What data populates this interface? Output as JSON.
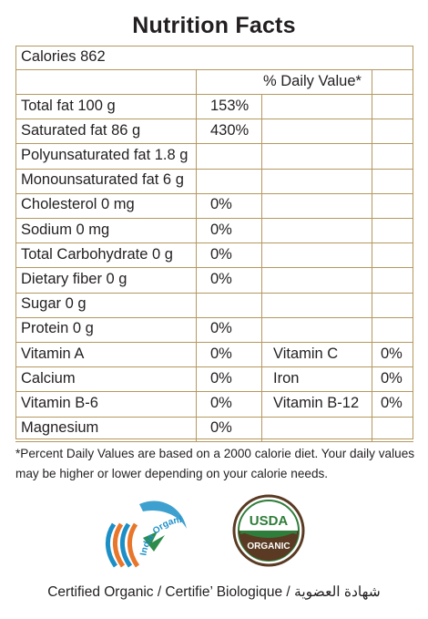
{
  "title": "Nutrition Facts",
  "calories": "Calories 862",
  "dv_header": "% Daily Value*",
  "rows": [
    {
      "label": "Total fat 100 g",
      "dv": "153%"
    },
    {
      "label": "Saturated fat 86 g",
      "dv": "430%"
    },
    {
      "label": "Polyunsaturated fat 1.8 g",
      "dv": ""
    },
    {
      "label": "Monounsaturated fat 6 g",
      "dv": ""
    },
    {
      "label": "Cholesterol 0 mg",
      "dv": "0%"
    },
    {
      "label": "Sodium 0 mg",
      "dv": "0%"
    },
    {
      "label": "Total Carbohydrate 0 g",
      "dv": "0%"
    },
    {
      "label": "Dietary fiber 0 g",
      "dv": "0%"
    },
    {
      "label": "Sugar 0 g",
      "dv": ""
    },
    {
      "label": "Protein 0 g",
      "dv": "0%"
    },
    {
      "label": "Vitamin A",
      "dv": "0%",
      "label2": "Vitamin C",
      "dv2": "0%"
    },
    {
      "label": "Calcium",
      "dv": "0%",
      "label2": "Iron",
      "dv2": "0%"
    },
    {
      "label": "Vitamin B-6",
      "dv": "0%",
      "label2": "Vitamin B-12",
      "dv2": "0%"
    },
    {
      "label": "Magnesium",
      "dv": "0%"
    }
  ],
  "footnote": "*Percent Daily Values are based on a 2000 calorie diet. Your daily values may be higher or lower depending on your calorie needs.",
  "logos": {
    "india_organic_text": "India Organic",
    "usda_top": "USDA",
    "usda_bottom": "ORGANIC"
  },
  "footer": "Certified Organic / Certifie’ Biologique / شهادة العضوية",
  "colors": {
    "border": "#b5985f",
    "text": "#231f20",
    "usda_green": "#2f7d3a",
    "usda_brown": "#5a3a22",
    "india_blue": "#1c8fc6",
    "india_orange": "#e8762b"
  }
}
